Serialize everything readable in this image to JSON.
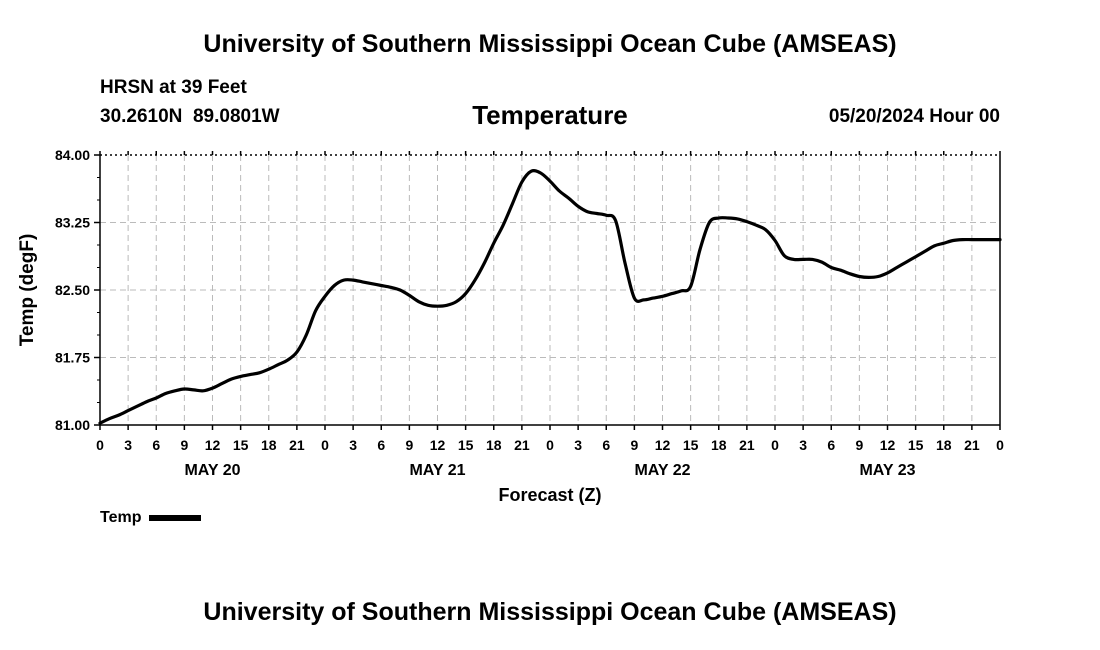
{
  "header": {
    "top_title": "University of Southern Mississippi Ocean Cube (AMSEAS)",
    "station": "HRSN at 39 Feet",
    "coords": "30.2610N  89.0801W",
    "parameter": "Temperature",
    "datetime": "05/20/2024 Hour 00"
  },
  "footer": {
    "bottom_title": "University of Southern Mississippi Ocean Cube (AMSEAS)"
  },
  "legend": {
    "label": "Temp",
    "color": "#000000"
  },
  "chart_data": {
    "type": "line",
    "title": "Temperature",
    "xlabel": "Forecast (Z)",
    "ylabel": "Temp (degF)",
    "xlim": [
      0,
      96
    ],
    "ylim": [
      81.0,
      84.0
    ],
    "yticks": [
      "81.00",
      "81.75",
      "82.50",
      "83.25",
      "84.00"
    ],
    "ytick_values": [
      81.0,
      81.75,
      82.5,
      83.25,
      84.0
    ],
    "xticks": [
      "0",
      "3",
      "6",
      "9",
      "12",
      "15",
      "18",
      "21",
      "0",
      "3",
      "6",
      "9",
      "12",
      "15",
      "18",
      "21",
      "0",
      "3",
      "6",
      "9",
      "12",
      "15",
      "18",
      "21",
      "0",
      "3",
      "6",
      "9",
      "12",
      "15",
      "18",
      "21",
      "0"
    ],
    "xtick_step_hours": 3,
    "day_labels": [
      {
        "label": "MAY 20",
        "hour": 12
      },
      {
        "label": "MAY 21",
        "hour": 36
      },
      {
        "label": "MAY 22",
        "hour": 60
      },
      {
        "label": "MAY 23",
        "hour": 84
      }
    ],
    "grid": true,
    "legend_position": "bottom-left",
    "series": [
      {
        "name": "Temp",
        "x": [
          0,
          1,
          2,
          3,
          4,
          5,
          6,
          7,
          8,
          9,
          10,
          11,
          12,
          13,
          14,
          15,
          16,
          17,
          18,
          19,
          20,
          21,
          22,
          23,
          24,
          25,
          26,
          27,
          28,
          29,
          30,
          31,
          32,
          33,
          34,
          35,
          36,
          37,
          38,
          39,
          40,
          41,
          42,
          43,
          44,
          45,
          46,
          47,
          48,
          49,
          50,
          51,
          52,
          53,
          54,
          55,
          56,
          57,
          58,
          59,
          60,
          61,
          62,
          63,
          64,
          65,
          66,
          67,
          68,
          69,
          70,
          71,
          72,
          73,
          74,
          75,
          76,
          77,
          78,
          79,
          80,
          81,
          82,
          83,
          84,
          85,
          86,
          87,
          88,
          89,
          90,
          91,
          92,
          93,
          94,
          95,
          96
        ],
        "values": [
          81.02,
          81.07,
          81.11,
          81.16,
          81.21,
          81.26,
          81.3,
          81.35,
          81.38,
          81.4,
          81.39,
          81.38,
          81.41,
          81.46,
          81.51,
          81.54,
          81.56,
          81.58,
          81.62,
          81.67,
          81.72,
          81.81,
          82.0,
          82.27,
          82.43,
          82.55,
          82.61,
          82.61,
          82.59,
          82.57,
          82.55,
          82.53,
          82.5,
          82.44,
          82.37,
          82.33,
          82.32,
          82.33,
          82.37,
          82.46,
          82.61,
          82.8,
          83.02,
          83.22,
          83.46,
          83.7,
          83.82,
          83.8,
          83.71,
          83.6,
          83.52,
          83.43,
          83.37,
          83.35,
          83.33,
          83.27,
          82.8,
          82.41,
          82.39,
          82.41,
          82.43,
          82.46,
          82.49,
          82.54,
          82.95,
          83.25,
          83.3,
          83.3,
          83.29,
          83.26,
          83.22,
          83.17,
          83.05,
          82.88,
          82.84,
          82.84,
          82.84,
          82.81,
          82.75,
          82.72,
          82.68,
          82.65,
          82.64,
          82.65,
          82.69,
          82.75,
          82.81,
          82.87,
          82.93,
          82.99,
          83.02,
          83.05,
          83.06,
          83.06,
          83.06,
          83.06,
          83.06
        ]
      }
    ]
  }
}
